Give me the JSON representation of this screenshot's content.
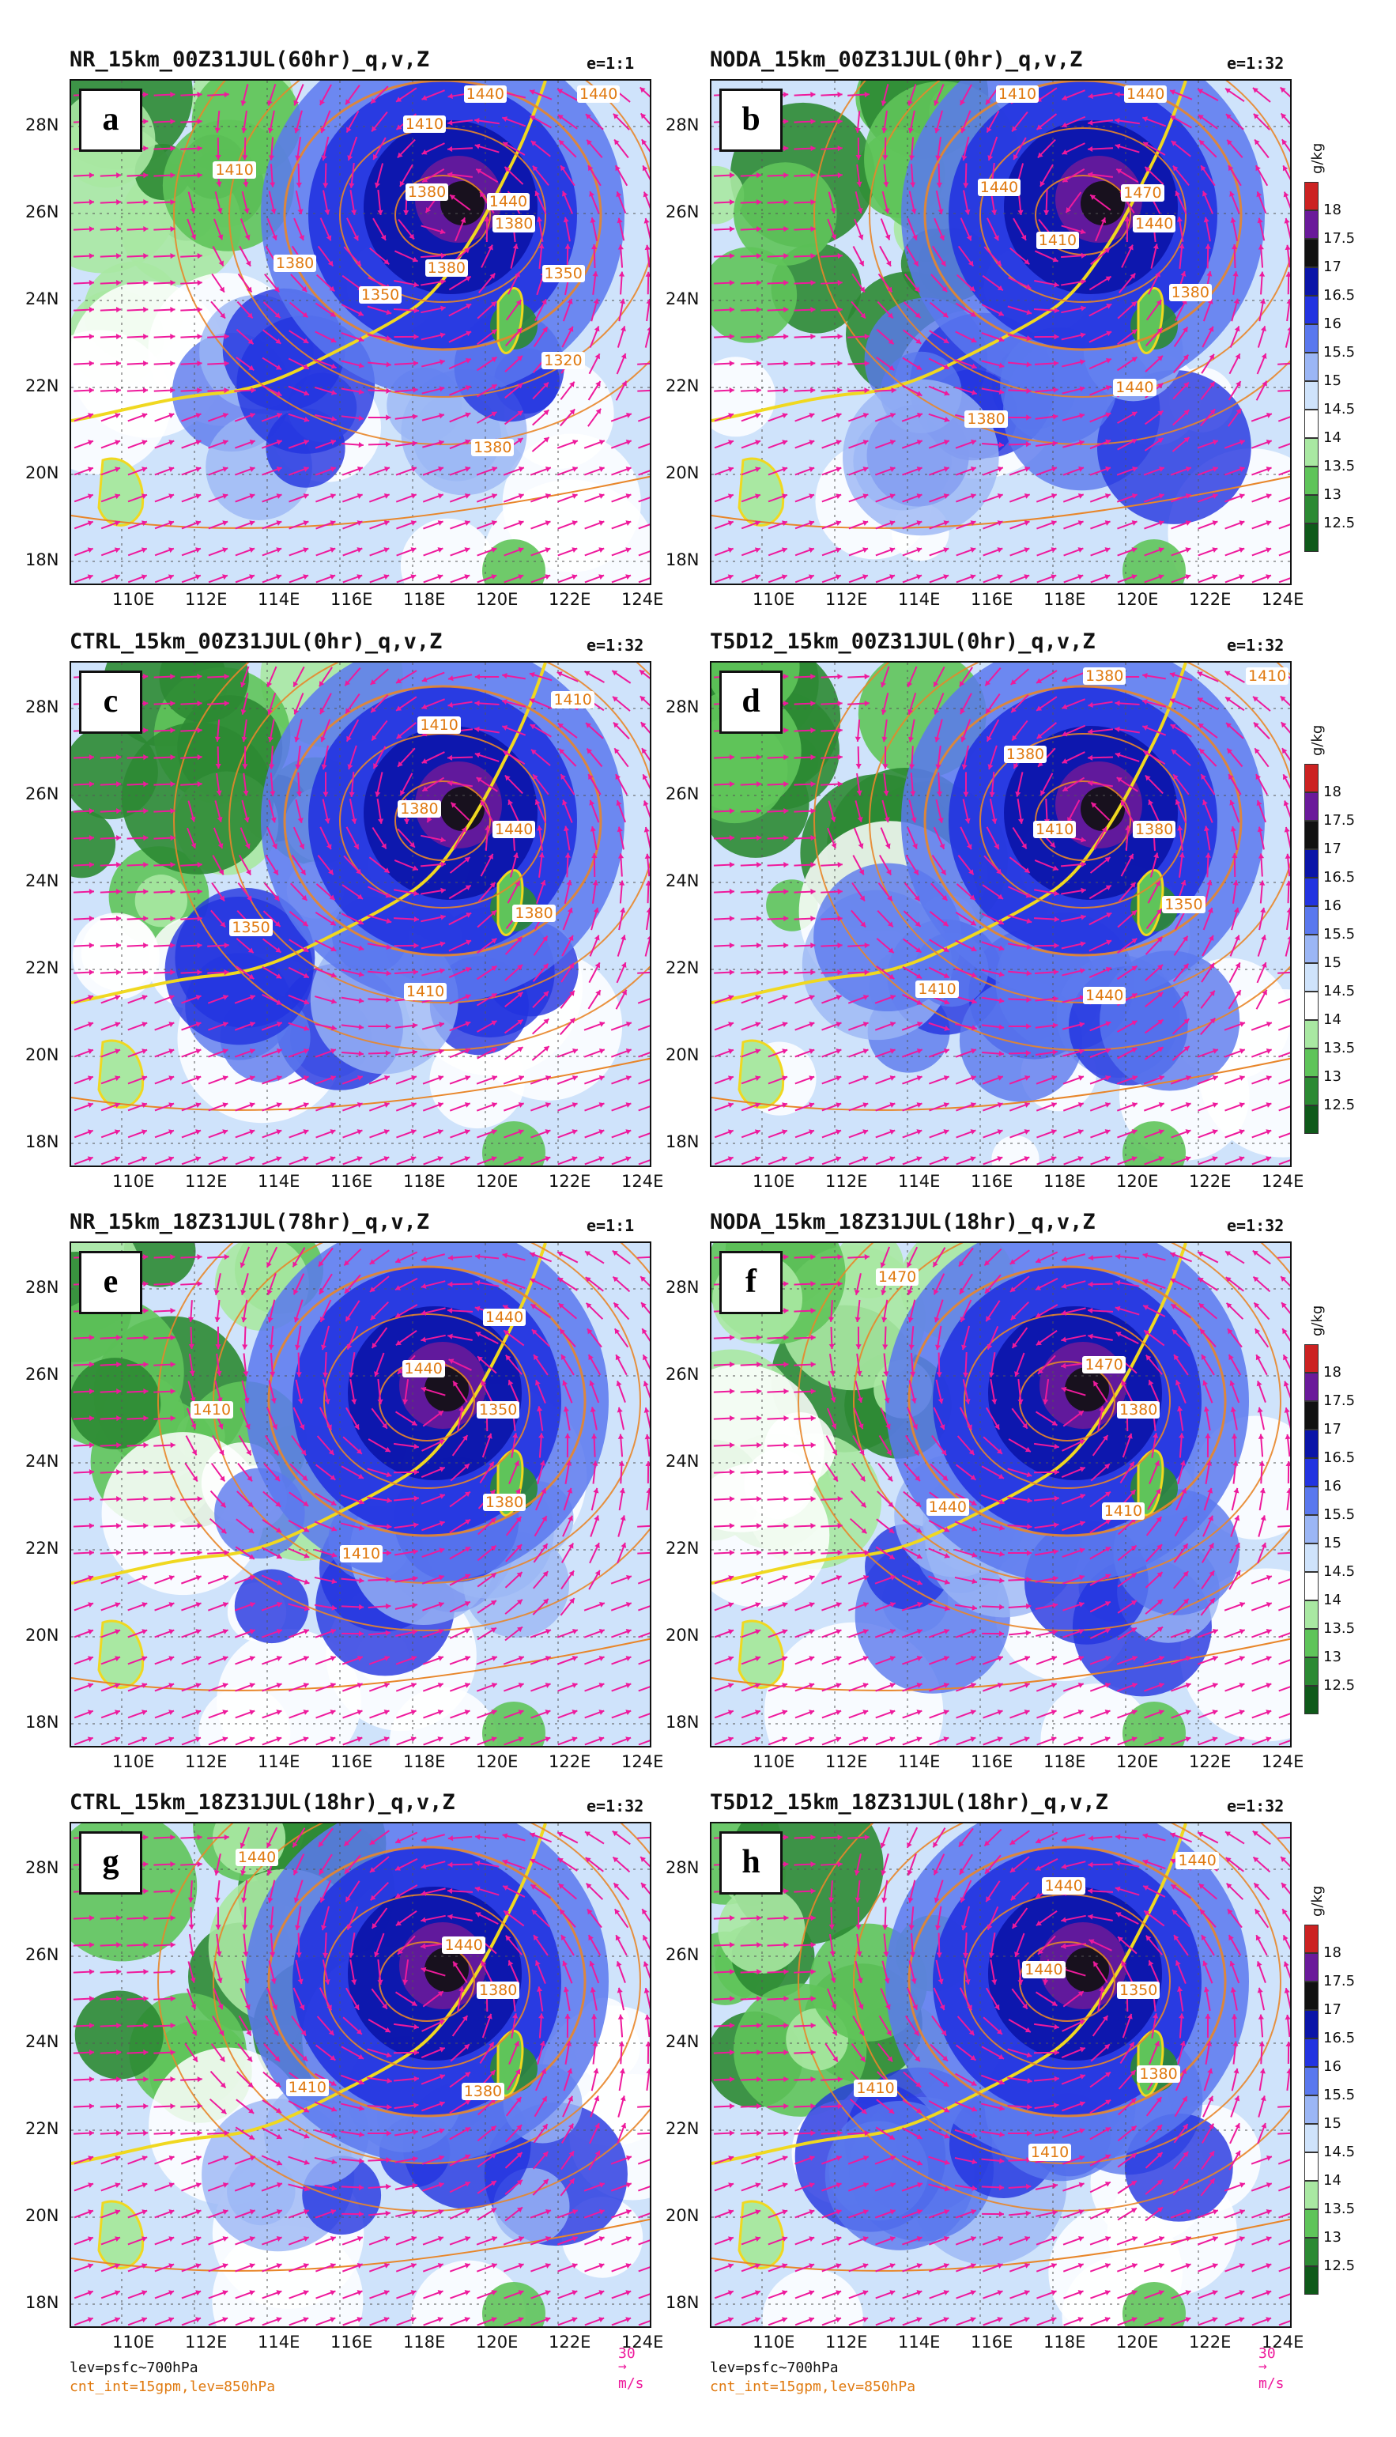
{
  "panels": [
    {
      "letter": "a",
      "title": "NR_15km_00Z31JUL(60hr)_q,v,Z",
      "e_ratio": "e=1:1",
      "contour_labels": [
        "1380",
        "1350",
        "1320",
        "1380",
        "1380",
        "1350",
        "1380",
        "1410",
        "1380",
        "1410",
        "1440",
        "1440",
        "1440"
      ]
    },
    {
      "letter": "b",
      "title": "NODA_15km_00Z31JUL(0hr)_q,v,Z",
      "e_ratio": "e=1:32",
      "contour_labels": [
        "1440",
        "1380",
        "1440",
        "1380",
        "1410",
        "1440",
        "1410",
        "1440",
        "1470"
      ]
    },
    {
      "letter": "c",
      "title": "CTRL_15km_00Z31JUL(0hr)_q,v,Z",
      "e_ratio": "e=1:32",
      "contour_labels": [
        "1440",
        "1380",
        "1410",
        "1350",
        "1380",
        "1410",
        "1410"
      ]
    },
    {
      "letter": "d",
      "title": "T5D12_15km_00Z31JUL(0hr)_q,v,Z",
      "e_ratio": "e=1:32",
      "contour_labels": [
        "1380",
        "1350",
        "1440",
        "1410",
        "1410",
        "1380",
        "1380",
        "1410"
      ]
    },
    {
      "letter": "e",
      "title": "NR_15km_18Z31JUL(78hr)_q,v,Z",
      "e_ratio": "e=1:1",
      "contour_labels": [
        "1350",
        "1380",
        "1410",
        "1410",
        "1440",
        "1440"
      ]
    },
    {
      "letter": "f",
      "title": "NODA_15km_18Z31JUL(18hr)_q,v,Z",
      "e_ratio": "e=1:32",
      "contour_labels": [
        "1380",
        "1410",
        "1440",
        "1470",
        "1470"
      ]
    },
    {
      "letter": "g",
      "title": "CTRL_15km_18Z31JUL(18hr)_q,v,Z",
      "e_ratio": "e=1:32",
      "contour_labels": [
        "1380",
        "1380",
        "1410",
        "1440",
        "1440"
      ]
    },
    {
      "letter": "h",
      "title": "T5D12_15km_18Z31JUL(18hr)_q,v,Z",
      "e_ratio": "e=1:32",
      "contour_labels": [
        "1350",
        "1380",
        "1410",
        "1410",
        "1440",
        "1440",
        "1440"
      ]
    }
  ],
  "axes": {
    "lat_ticks": [
      "28N",
      "26N",
      "24N",
      "22N",
      "20N",
      "18N"
    ],
    "lon_ticks": [
      "110E",
      "112E",
      "114E",
      "116E",
      "118E",
      "120E",
      "122E",
      "124E"
    ]
  },
  "colorbar": {
    "unit": "g/kg",
    "levels": [
      "18",
      "17.5",
      "17",
      "16.5",
      "16",
      "15.5",
      "15",
      "14.5",
      "14",
      "13.5",
      "13",
      "12.5"
    ],
    "colors": [
      "#cc2222",
      "#6a1a9a",
      "#111111",
      "#0a14a8",
      "#2233e0",
      "#5a78ee",
      "#9bb6f5",
      "#cfe3fb",
      "#ffffff",
      "#a9e8a2",
      "#5fc45a",
      "#2c8a33",
      "#0f5a1a"
    ]
  },
  "footer": {
    "lev": "lev=psfc~700hPa",
    "cnt": "cnt_int=15gpm,lev=850hPa",
    "ref_vector": "30",
    "ref_unit": "m/s"
  },
  "colors": {
    "wind_arrow": "#ee1a9c",
    "height_contour": "#e8862a",
    "coastline": "#e8d020"
  }
}
